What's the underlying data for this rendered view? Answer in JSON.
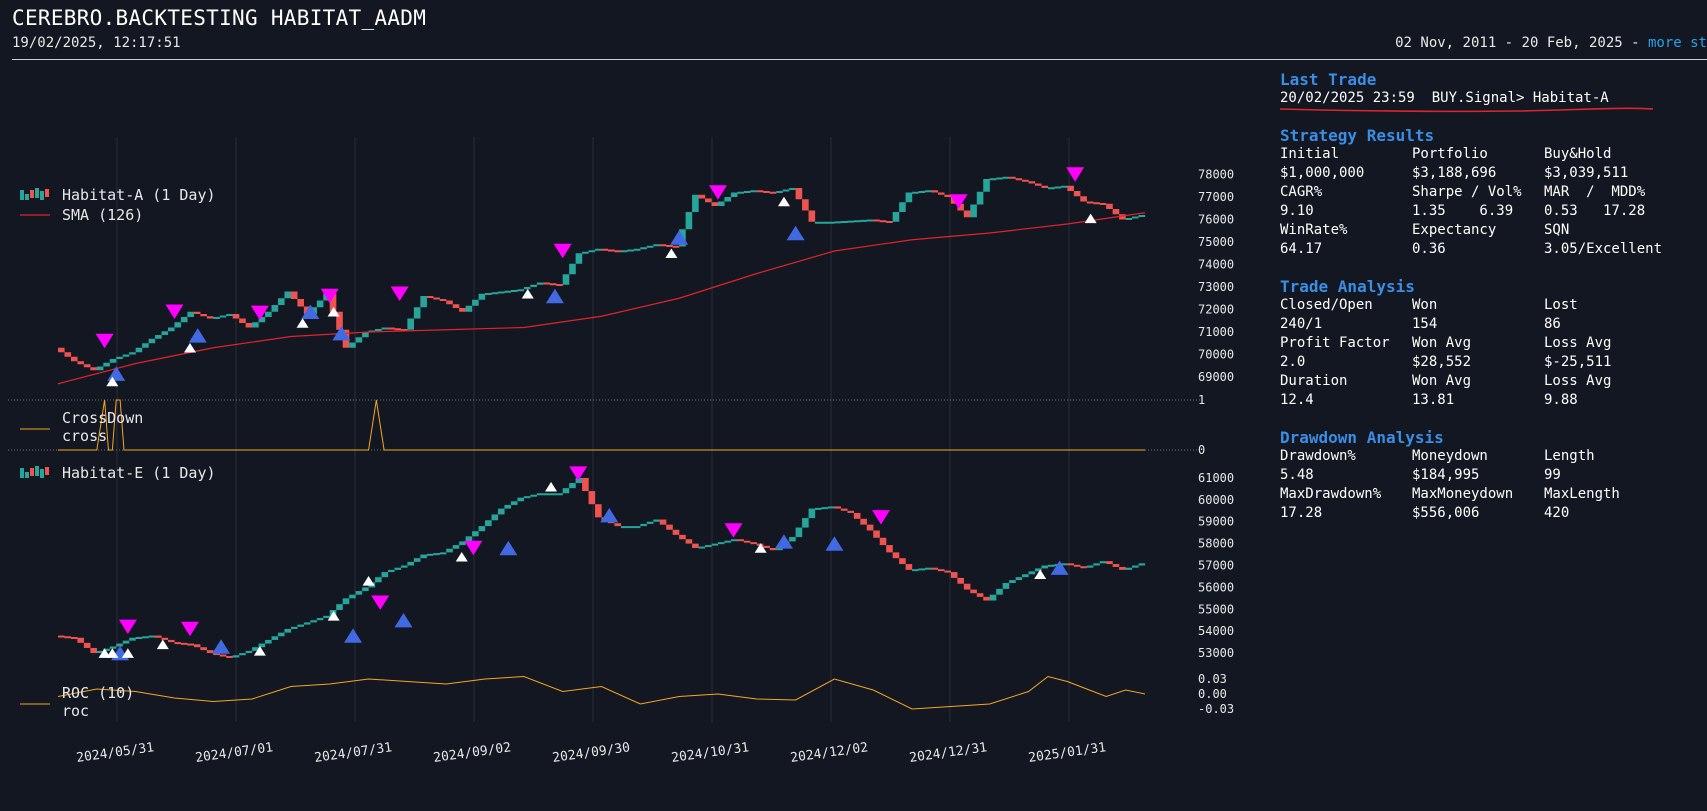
{
  "header": {
    "title": "CEREBRO.BACKTESTING HABITAT_AADM",
    "timestamp": "19/02/2025, 12:17:51",
    "date_range": "02 Nov, 2011 - 20 Feb, 2025 - ",
    "more_link": "more st"
  },
  "legends": {
    "main_series": "Habitat-A (1 Day)",
    "main_sma": "SMA (126)",
    "cross_line1": "CrossDown",
    "cross_line2": "cross",
    "second_series": "Habitat-E (1 Day)",
    "roc_line1": "ROC (10)",
    "roc_line2": "roc"
  },
  "colors": {
    "background": "#131722",
    "up_candle": "#26a69a",
    "down_candle": "#ef5350",
    "sma": "#e0242c",
    "indicator": "#f5a623",
    "buy_marker": "#4169e1",
    "sell_marker": "#ff00ff",
    "signal_marker": "#ffffff",
    "section_heading": "#3a8ee6",
    "link": "#29a3e8"
  },
  "chart_data": [
    {
      "type": "line",
      "title": "Habitat-A (1 Day)",
      "x_ticks": [
        "2024/05/31",
        "2024/07/01",
        "2024/07/31",
        "2024/09/02",
        "2024/09/30",
        "2024/10/31",
        "2024/12/02",
        "2024/12/31",
        "2025/01/31"
      ],
      "y_ticks": [
        "78000",
        "77000",
        "76000",
        "75000",
        "74000",
        "73000",
        "72000",
        "71000",
        "70000",
        "69000"
      ],
      "ylim": [
        68600,
        78200
      ],
      "series": [
        {
          "name": "Habitat-A (1 Day)",
          "x": [
            0,
            5,
            10,
            15,
            20,
            25,
            30,
            35,
            40,
            45,
            50,
            55,
            60,
            65,
            70,
            75,
            80,
            85,
            90,
            95,
            100,
            105,
            110,
            115,
            120,
            125,
            130,
            135,
            140,
            145,
            150,
            155,
            160,
            165,
            170,
            175,
            180,
            185,
            190,
            195,
            200,
            205,
            210,
            215,
            220,
            225,
            230,
            235,
            240,
            245,
            250,
            255,
            260,
            265,
            270,
            275,
            280
          ],
          "values": [
            70300,
            69700,
            69300,
            69800,
            70100,
            70700,
            71200,
            71900,
            71600,
            71800,
            71200,
            71900,
            72800,
            71800,
            72700,
            70300,
            71000,
            71200,
            71100,
            72600,
            72400,
            71900,
            72700,
            72800,
            72900,
            73200,
            73100,
            74500,
            74700,
            74600,
            74700,
            74900,
            74800,
            77100,
            76600,
            77200,
            77300,
            77200,
            77400,
            75900,
            75900,
            75950,
            76000,
            75900,
            77200,
            77300,
            77000,
            76100,
            77800,
            77900,
            77700,
            77400,
            77500,
            76800,
            76700,
            76000,
            76200
          ]
        },
        {
          "name": "SMA (126)",
          "x": [
            0,
            20,
            40,
            60,
            80,
            100,
            120,
            140,
            160,
            180,
            200,
            220,
            240,
            260,
            280
          ],
          "values": [
            68700,
            69600,
            70300,
            70800,
            71000,
            71100,
            71200,
            71700,
            72500,
            73600,
            74600,
            75100,
            75400,
            75800,
            76300
          ]
        }
      ],
      "markers": {
        "sell_x": [
          12,
          30,
          52,
          70,
          88,
          130,
          170,
          232,
          262
        ],
        "sell_values": [
          70600,
          71900,
          71850,
          72600,
          72700,
          74600,
          77200,
          76800,
          78000
        ],
        "buy_x": [
          15,
          36,
          65,
          73,
          128,
          160,
          190
        ],
        "buy_values": [
          69150,
          70850,
          71900,
          70950,
          72600,
          75200,
          75400
        ],
        "signal_x": [
          14,
          34,
          63,
          71,
          121,
          158,
          187,
          266
        ],
        "signal_values": [
          68800,
          70300,
          71400,
          71900,
          72700,
          74500,
          76800,
          76050
        ]
      }
    },
    {
      "type": "line",
      "title": "CrossDown",
      "y_ticks": [
        "1",
        "0"
      ],
      "ylim": [
        0,
        1
      ],
      "series": [
        {
          "name": "cross",
          "x": [
            0,
            10,
            12,
            13,
            14,
            15,
            16,
            17,
            18,
            80,
            82,
            84,
            280
          ],
          "values": [
            0,
            0,
            1,
            0,
            0,
            1,
            1,
            0,
            0,
            0,
            1,
            0,
            0
          ]
        }
      ]
    },
    {
      "type": "line",
      "title": "Habitat-E (1 Day)",
      "y_ticks": [
        "61000",
        "60000",
        "59000",
        "58000",
        "57000",
        "56000",
        "55000",
        "54000",
        "53000"
      ],
      "ylim": [
        52500,
        61500
      ],
      "series": [
        {
          "name": "Habitat-E (1 Day)",
          "x": [
            0,
            5,
            10,
            15,
            20,
            25,
            30,
            35,
            40,
            45,
            50,
            55,
            60,
            65,
            70,
            75,
            80,
            85,
            90,
            95,
            100,
            105,
            110,
            115,
            120,
            125,
            130,
            135,
            140,
            145,
            150,
            155,
            160,
            165,
            170,
            175,
            180,
            185,
            190,
            195,
            200,
            205,
            210,
            215,
            220,
            225,
            230,
            235,
            240,
            245,
            250,
            255,
            260,
            265,
            270,
            275,
            280
          ],
          "values": [
            53800,
            53700,
            53000,
            53300,
            53700,
            53800,
            53500,
            53400,
            53000,
            52800,
            53100,
            53600,
            54100,
            54400,
            54700,
            55500,
            56000,
            56700,
            57000,
            57500,
            57600,
            58100,
            58800,
            59600,
            60100,
            60300,
            60300,
            61000,
            59200,
            58800,
            58800,
            59100,
            58400,
            57800,
            58000,
            58200,
            58000,
            57700,
            58300,
            59600,
            59700,
            59400,
            58600,
            57600,
            56800,
            56900,
            56700,
            55900,
            55400,
            56200,
            56600,
            57000,
            57100,
            56900,
            57200,
            56800,
            57100
          ]
        }
      ],
      "markers": {
        "sell_x": [
          18,
          34,
          83,
          107,
          134,
          174,
          212
        ],
        "sell_values": [
          54200,
          54100,
          55300,
          57800,
          61200,
          58600,
          59200
        ],
        "buy_x": [
          16,
          42,
          76,
          89,
          116,
          142,
          187,
          200,
          258
        ],
        "buy_values": [
          53000,
          53300,
          53800,
          54500,
          57800,
          59300,
          58100,
          58000,
          56900
        ],
        "signal_x": [
          12,
          14,
          18,
          27,
          52,
          71,
          80,
          104,
          127,
          181,
          253
        ],
        "signal_values": [
          53000,
          53000,
          53000,
          53400,
          53100,
          54700,
          56300,
          57400,
          60600,
          57800,
          56600
        ]
      }
    },
    {
      "type": "line",
      "title": "ROC (10)",
      "y_ticks": [
        "0.03",
        "0.00",
        "-0.03"
      ],
      "ylim": [
        -0.04,
        0.04
      ],
      "series": [
        {
          "name": "roc",
          "x": [
            0,
            10,
            20,
            30,
            40,
            50,
            60,
            70,
            80,
            90,
            100,
            110,
            120,
            130,
            140,
            150,
            160,
            170,
            180,
            190,
            200,
            210,
            220,
            230,
            240,
            250,
            255,
            260,
            265,
            270,
            275,
            280
          ],
          "values": [
            -0.005,
            0.01,
            0.005,
            -0.008,
            -0.015,
            -0.01,
            0.015,
            0.02,
            0.03,
            0.025,
            0.02,
            0.03,
            0.035,
            0.005,
            0.015,
            -0.02,
            -0.005,
            0.0,
            -0.01,
            -0.012,
            0.03,
            0.008,
            -0.03,
            -0.025,
            -0.02,
            0.005,
            0.035,
            0.025,
            0.01,
            -0.005,
            0.008,
            0.0
          ]
        }
      ]
    }
  ],
  "panel": {
    "last_trade": {
      "heading": "Last Trade",
      "line": "20/02/2025 23:59  BUY.Signal> Habitat-A"
    },
    "strategy": {
      "heading": "Strategy Results",
      "rows": [
        [
          "Initial",
          "Portfolio",
          "Buy&Hold"
        ],
        [
          "$1,000,000",
          "$3,188,696",
          "$3,039,511"
        ],
        [
          "CAGR%",
          "Sharpe / Vol%",
          "MAR  /  MDD%"
        ],
        [
          "9.10",
          "1.35    6.39",
          "0.53   17.28"
        ],
        [
          "WinRate%",
          "Expectancy",
          "SQN"
        ],
        [
          "64.17",
          "0.36",
          "3.05/Excellent"
        ]
      ]
    },
    "trade": {
      "heading": "Trade Analysis",
      "rows": [
        [
          "Closed/Open",
          "Won",
          "Lost"
        ],
        [
          "240/1",
          "154",
          "86"
        ],
        [
          "Profit Factor",
          "Won Avg",
          "Loss Avg"
        ],
        [
          "2.0",
          "$28,552",
          "$-25,511"
        ],
        [
          "Duration",
          "Won Avg",
          "Loss Avg"
        ],
        [
          "12.4",
          "13.81",
          "9.88"
        ]
      ]
    },
    "drawdown": {
      "heading": "Drawdown Analysis",
      "rows": [
        [
          "Drawdown%",
          "Moneydown",
          "Length"
        ],
        [
          "5.48",
          "$184,995",
          "99"
        ],
        [
          "MaxDrawdown%",
          "MaxMoneydown",
          "MaxLength"
        ],
        [
          "17.28",
          "$556,006",
          "420"
        ]
      ]
    }
  }
}
